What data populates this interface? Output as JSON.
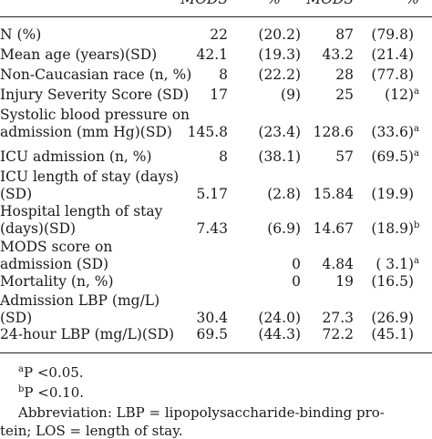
{
  "header": [
    "MODS",
    "%",
    "MODS",
    "%"
  ],
  "rows": [
    {
      "label": [
        "N (%)"
      ],
      "v1": "22",
      "p1": "(20.2)",
      "v2": "87",
      "p2": "(79.8)"
    },
    {
      "label": [
        "Mean age (years)(SD)"
      ],
      "v1": "42.1",
      "p1": "(19.3)",
      "v2": "43.2",
      "p2": "(21.4)"
    },
    {
      "label": [
        "Non-Caucasian race (n, %)"
      ],
      "v1": "8",
      "p1": "(22.2)",
      "v2": "28",
      "p2": "(77.8)"
    },
    {
      "label": [
        "Injury Severity Score (SD)"
      ],
      "v1": "17",
      "p1": "(9)",
      "v2": "25",
      "p2": "(12)",
      "sup": "a"
    },
    {
      "label": [
        "Systolic blood pressure on",
        "admission (mm Hg)(SD)"
      ],
      "v1": "145.8",
      "p1": "(23.4)",
      "v2": "128.6",
      "p2": "(33.6)",
      "sup": "a"
    },
    {
      "label": [
        "ICU admission (n, %)"
      ],
      "v1": "8",
      "p1": "(38.1)",
      "v2": "57",
      "p2": "(69.5)",
      "sup": "a"
    },
    {
      "label": [
        "ICU length of stay (days)",
        "(SD)"
      ],
      "v1": "5.17",
      "p1": "(2.8)",
      "v2": "15.84",
      "p2": "(19.9)"
    },
    {
      "label": [
        "Hospital length of stay",
        "(days)(SD)"
      ],
      "v1": "7.43",
      "p1": "(6.9)",
      "v2": "14.67",
      "p2": "(18.9)",
      "sup": "b"
    },
    {
      "label": [
        "MODS score on",
        "admission (SD)"
      ],
      "v1": "",
      "p1": "0",
      "v2": "4.84",
      "p2": "( 3.1)",
      "sup": "a"
    },
    {
      "label": [
        "Mortality (n, %)"
      ],
      "v1": "",
      "p1": "0",
      "v2": "19",
      "p2": "(16.5)"
    },
    {
      "label": [
        "Admission LBP (mg/L)",
        "(SD)"
      ],
      "v1": "30.4",
      "p1": "(24.0)",
      "v2": "27.3",
      "p2": "(26.9)"
    },
    {
      "label": [
        "24-hour LBP (mg/L)(SD)"
      ],
      "v1": "69.5",
      "p1": "(44.3)",
      "v2": "72.2",
      "p2": "(45.1)"
    }
  ],
  "footnotes": {
    "a_mark": "a",
    "a_text": "P <0.05.",
    "b_mark": "b",
    "b_text": "P <0.10.",
    "abbrev1": "Abbreviation: LBP = lipopolysaccharide-binding pro-",
    "abbrev2": "tein; LOS = length of stay."
  }
}
